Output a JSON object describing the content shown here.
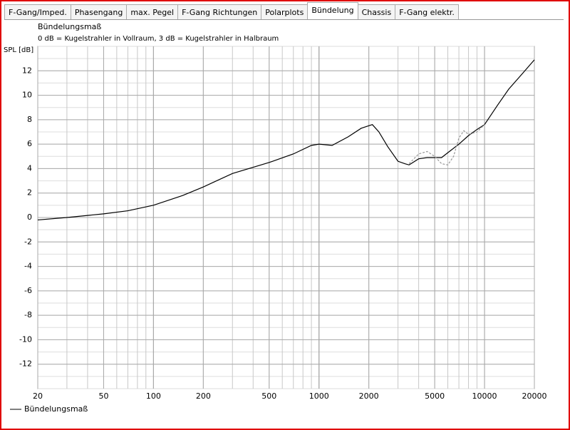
{
  "tabs": [
    "F-Gang/Imped.",
    "Phasengang",
    "max. Pegel",
    "F-Gang Richtungen",
    "Polarplots",
    "Bündelung",
    "Chassis",
    "F-Gang elektr."
  ],
  "active_tab": "Bündelung",
  "chart_data": {
    "type": "line",
    "title": "Bündelungsmaß",
    "subtitle": "0 dB = Kugelstrahler in Vollraum, 3 dB = Kugelstrahler in Halbraum",
    "y_label": "SPL [dB]",
    "log_x": true,
    "grid": true,
    "legend": "bottom-left",
    "xlim": [
      20,
      20000
    ],
    "xticks": [
      20,
      50,
      100,
      200,
      500,
      1000,
      2000,
      5000,
      10000,
      20000
    ],
    "ylim": [
      -14,
      14
    ],
    "yticks": [
      -12,
      -10,
      -8,
      -6,
      -4,
      -2,
      0,
      2,
      4,
      6,
      8,
      10,
      12
    ],
    "series": [
      {
        "name": "Bündelungsmaß",
        "color": "#000000",
        "dash": false,
        "x": [
          20,
          30,
          50,
          70,
          100,
          150,
          200,
          300,
          500,
          700,
          900,
          1000,
          1200,
          1500,
          1800,
          2100,
          2300,
          2600,
          3000,
          3300,
          3500,
          4000,
          4500,
          5000,
          5500,
          6000,
          7000,
          8000,
          9000,
          10000,
          12000,
          14000,
          17000,
          20000
        ],
        "values": [
          -0.2,
          0,
          0.3,
          0.55,
          1.0,
          1.8,
          2.5,
          3.6,
          4.5,
          5.2,
          5.9,
          6.0,
          5.9,
          6.6,
          7.3,
          7.6,
          7.0,
          5.8,
          4.6,
          4.4,
          4.3,
          4.8,
          4.9,
          4.9,
          4.9,
          5.3,
          6.0,
          6.7,
          7.2,
          7.6,
          9.2,
          10.5,
          11.8,
          12.9
        ]
      },
      {
        "color": "#999999",
        "dash": true,
        "x": [
          3500,
          4000,
          4500,
          5000,
          5500,
          6000,
          6500,
          7000,
          7500,
          8000,
          9000,
          10000
        ],
        "values": [
          4.4,
          5.2,
          5.4,
          5.0,
          4.4,
          4.3,
          5.0,
          6.5,
          7.1,
          6.8,
          7.0,
          7.6
        ]
      }
    ]
  }
}
